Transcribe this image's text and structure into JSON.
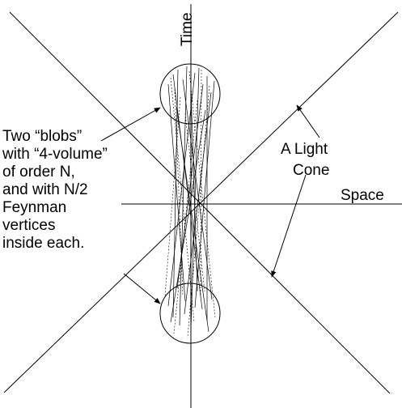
{
  "labels": {
    "time": "Time",
    "space": "Space",
    "light_cone": [
      "A Light",
      "Cone"
    ],
    "blobs_note": [
      "Two “blobs”",
      "with “4-volume”",
      "of order N,",
      "and with N/2",
      "Feynman",
      "vertices",
      "inside each."
    ]
  }
}
